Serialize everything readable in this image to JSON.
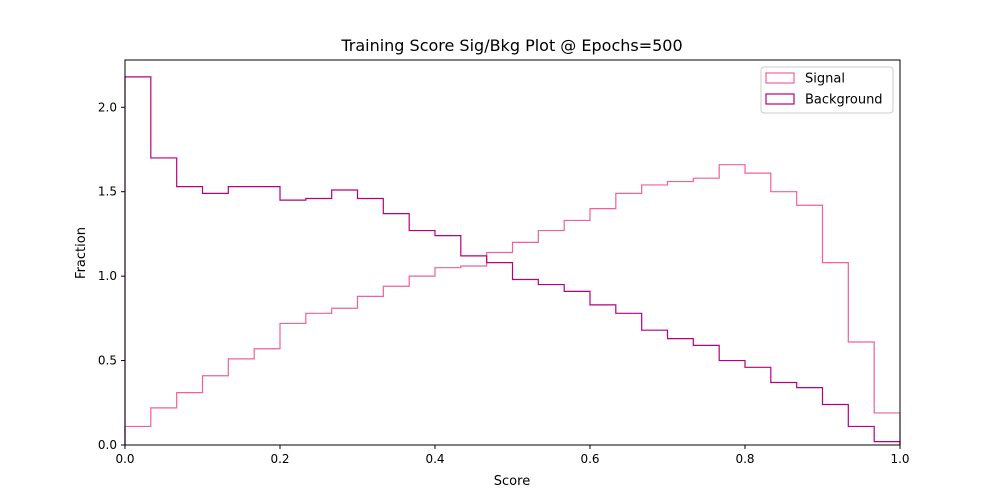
{
  "chart_data": {
    "type": "step",
    "title": "Training Score Sig/Bkg Plot @ Epochs=500",
    "xlabel": "Score",
    "ylabel": "Fraction",
    "xlim": [
      0,
      1
    ],
    "ylim": [
      0,
      2.28
    ],
    "xticks": [
      0.0,
      0.2,
      0.4,
      0.6,
      0.8,
      1.0
    ],
    "xtick_labels": [
      "0.0",
      "0.2",
      "0.4",
      "0.6",
      "0.8",
      "1.0"
    ],
    "yticks": [
      0.0,
      0.5,
      1.0,
      1.5,
      2.0
    ],
    "ytick_labels": [
      "0.0",
      "0.5",
      "1.0",
      "1.5",
      "2.0"
    ],
    "grid": false,
    "legend_position": "top-right",
    "bin_edges": [
      0.0,
      0.0333,
      0.0667,
      0.1,
      0.1333,
      0.1667,
      0.2,
      0.2333,
      0.2667,
      0.3,
      0.3333,
      0.3667,
      0.4,
      0.4333,
      0.4667,
      0.5,
      0.5333,
      0.5667,
      0.6,
      0.6333,
      0.6667,
      0.7,
      0.7333,
      0.7667,
      0.8,
      0.8333,
      0.8667,
      0.9,
      0.9333,
      0.9667,
      1.0
    ],
    "series": [
      {
        "name": "Signal",
        "color": "#f0609a",
        "values": [
          0.11,
          0.22,
          0.31,
          0.41,
          0.51,
          0.57,
          0.72,
          0.78,
          0.81,
          0.88,
          0.94,
          1.0,
          1.05,
          1.06,
          1.14,
          1.2,
          1.27,
          1.33,
          1.4,
          1.49,
          1.54,
          1.56,
          1.58,
          1.66,
          1.61,
          1.5,
          1.42,
          1.08,
          0.61,
          0.19
        ]
      },
      {
        "name": "Background",
        "color": "#b5007f",
        "values": [
          2.18,
          1.7,
          1.53,
          1.49,
          1.53,
          1.53,
          1.45,
          1.46,
          1.51,
          1.46,
          1.37,
          1.27,
          1.24,
          1.12,
          1.08,
          0.98,
          0.95,
          0.91,
          0.83,
          0.78,
          0.68,
          0.63,
          0.59,
          0.5,
          0.46,
          0.37,
          0.34,
          0.24,
          0.11,
          0.02
        ]
      }
    ]
  }
}
